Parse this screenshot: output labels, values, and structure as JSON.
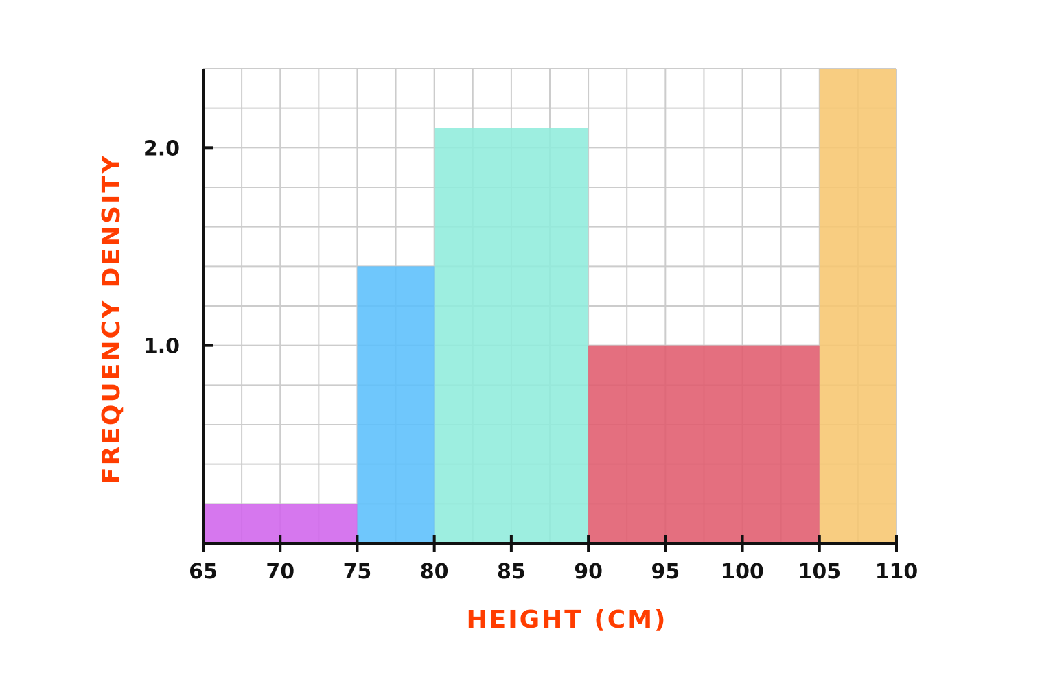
{
  "chart_data": {
    "type": "bar",
    "subtype": "histogram",
    "xlabel": "HEIGHT (CM)",
    "ylabel": "FREQUENCY DENSITY",
    "xlim": [
      65,
      110
    ],
    "ylim": [
      0,
      2.4
    ],
    "x_ticks": [
      65,
      70,
      75,
      80,
      85,
      90,
      95,
      100,
      105,
      110
    ],
    "y_ticks": [
      {
        "value": 1.0,
        "label": "1.0"
      },
      {
        "value": 2.0,
        "label": "2.0"
      }
    ],
    "grid": true,
    "grid_x_step": 2.5,
    "grid_y_step": 0.2,
    "label_color": "#ff3d00",
    "bins": [
      {
        "start": 65,
        "end": 75,
        "density": 0.2,
        "color": "#d064ec"
      },
      {
        "start": 75,
        "end": 80,
        "density": 1.4,
        "color": "#5bbffc"
      },
      {
        "start": 80,
        "end": 90,
        "density": 2.1,
        "color": "#90ecdc"
      },
      {
        "start": 90,
        "end": 105,
        "density": 1.0,
        "color": "#e05b6d"
      },
      {
        "start": 105,
        "end": 110,
        "density": 2.4,
        "color": "#f7c670"
      }
    ]
  }
}
